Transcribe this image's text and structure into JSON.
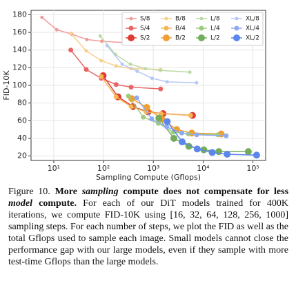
{
  "chart_data": {
    "type": "line",
    "xlabel": "Sampling Compute (Gflops)",
    "ylabel": "FID-10K",
    "xscale": "log",
    "xlim": [
      3.5,
      180000
    ],
    "ylim": [
      15,
      185
    ],
    "xticks": [
      {
        "value": 10,
        "label": "10¹"
      },
      {
        "value": 100,
        "label": "10²"
      },
      {
        "value": 1000,
        "label": "10³"
      },
      {
        "value": 10000,
        "label": "10⁴"
      },
      {
        "value": 100000,
        "label": "10⁵"
      }
    ],
    "yticks": [
      20,
      40,
      60,
      80,
      100,
      120,
      140,
      160,
      180
    ],
    "grid": true,
    "legend": "upper right",
    "legend_rows": 3,
    "series": [
      {
        "name": "S/8",
        "color": "#f29a9a",
        "marker_size": 2.5,
        "x": [
          5.8,
          11.5,
          23,
          46,
          92,
          360
        ],
        "values": [
          177,
          163,
          158,
          152,
          150,
          148
        ]
      },
      {
        "name": "S/4",
        "color": "#e96464",
        "marker_size": 3.5,
        "x": [
          22,
          45,
          90,
          179,
          358,
          1400
        ],
        "values": [
          140,
          118,
          108,
          101,
          98,
          96
        ]
      },
      {
        "name": "S/2",
        "color": "#e03c32",
        "marker_size": 5,
        "x": [
          98,
          195,
          390,
          781,
          1562,
          6100
        ],
        "values": [
          111,
          87,
          76,
          70,
          68,
          66
        ]
      },
      {
        "name": "B/8",
        "color": "#f7cf8a",
        "marker_size": 2.5,
        "x": [
          22,
          45,
          90,
          179,
          358,
          1400
        ],
        "values": [
          159,
          139,
          128,
          122,
          119,
          118
        ]
      },
      {
        "name": "B/4",
        "color": "#f5b655",
        "marker_size": 3.5,
        "x": [
          90,
          179,
          358,
          717,
          1434,
          5600
        ],
        "values": [
          110,
          87,
          76,
          70,
          68,
          66
        ]
      },
      {
        "name": "B/2",
        "color": "#f0a032",
        "marker_size": 5,
        "x": [
          368,
          736,
          1472,
          2944,
          5888,
          23000
        ],
        "values": [
          85,
          75,
          62,
          50,
          46,
          45
        ]
      },
      {
        "name": "L/8",
        "color": "#bcd9a2",
        "marker_size": 2.5,
        "x": [
          86,
          173,
          346,
          691,
          1382,
          5400
        ],
        "values": [
          156,
          135,
          124,
          119,
          117,
          115
        ]
      },
      {
        "name": "L/4",
        "color": "#9fcb80",
        "marker_size": 3.5,
        "x": [
          315,
          630,
          1261,
          2522,
          5043,
          19700
        ],
        "values": [
          88,
          64,
          57,
          47,
          45,
          44
        ]
      },
      {
        "name": "L/2",
        "color": "#74ad5a",
        "marker_size": 5,
        "x": [
          1291,
          2582,
          5165,
          10330,
          20659,
          80700
        ],
        "values": [
          63,
          40,
          31,
          27,
          25,
          25
        ]
      },
      {
        "name": "XL/8",
        "color": "#b5c8f6",
        "marker_size": 2.5,
        "x": [
          118,
          237,
          474,
          947,
          1894,
          7400
        ],
        "values": [
          145,
          124,
          116,
          108,
          104,
          103
        ]
      },
      {
        "name": "XL/4",
        "color": "#8eaaf4",
        "marker_size": 3.5,
        "x": [
          464,
          928,
          1856,
          3712,
          7424,
          29000
        ],
        "values": [
          86,
          62,
          53,
          46,
          44,
          43
        ]
      },
      {
        "name": "XL/2",
        "color": "#5a86ee",
        "marker_size": 5,
        "x": [
          1898,
          3795,
          7590,
          15181,
          30362,
          118600
        ],
        "values": [
          59,
          36,
          28,
          24,
          22,
          21
        ]
      }
    ]
  },
  "caption": {
    "label": "Figure 10.",
    "title_1": "More",
    "title_em_1": "sampling",
    "title_2": "compute does not compensate for less",
    "title_em_2": "model",
    "title_3": "compute.",
    "body": "For each of our DiT models trained for 400K iterations, we compute FID-10K using [16, 32, 64, 128, 256, 1000] sampling steps. For each number of steps, we plot the FID as well as the total Gflops used to sample each image. Small models cannot close the performance gap with our large models, even if they sample with more test-time Gflops than the large models."
  }
}
